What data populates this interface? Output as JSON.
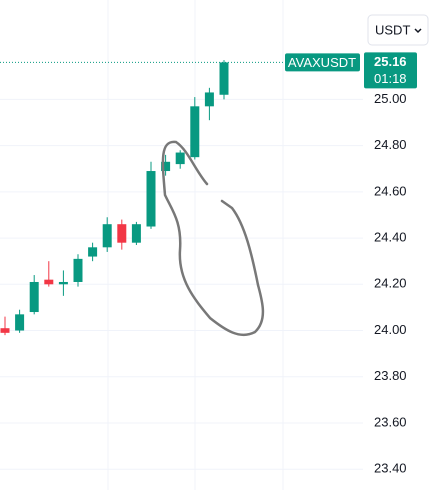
{
  "chart_data": {
    "type": "candlestick",
    "symbol": "AVAXUSDT",
    "currency": "USDT",
    "countdown": "01:18",
    "last_price": 25.16,
    "up_color": "#089981",
    "down_color": "#f23645",
    "grid": true,
    "ylim": [
      23.31,
      25.43
    ],
    "yticks": [
      {
        "value": 23.4,
        "label": "23.40"
      },
      {
        "value": 23.6,
        "label": "23.60"
      },
      {
        "value": 23.8,
        "label": "23.80"
      },
      {
        "value": 24.0,
        "label": "24.00"
      },
      {
        "value": 24.2,
        "label": "24.20"
      },
      {
        "value": 24.4,
        "label": "24.40"
      },
      {
        "value": 24.6,
        "label": "24.60"
      },
      {
        "value": 24.8,
        "label": "24.80"
      },
      {
        "value": 25.0,
        "label": "25.00"
      }
    ],
    "open": [
      24.01,
      24.0,
      24.08,
      24.22,
      24.2,
      24.21,
      24.32,
      24.36,
      24.46,
      24.38,
      24.45,
      24.69,
      24.72,
      24.75,
      24.97,
      25.02
    ],
    "high": [
      24.06,
      24.09,
      24.24,
      24.3,
      24.26,
      24.33,
      24.38,
      24.49,
      24.48,
      24.47,
      24.73,
      24.76,
      24.78,
      25.01,
      25.05,
      25.17
    ],
    "low": [
      23.98,
      23.99,
      24.07,
      24.19,
      24.15,
      24.19,
      24.3,
      24.34,
      24.35,
      24.37,
      24.44,
      24.67,
      24.7,
      24.74,
      24.91,
      25.0
    ],
    "close": [
      23.99,
      24.07,
      24.21,
      24.2,
      24.21,
      24.31,
      24.36,
      24.46,
      24.38,
      24.46,
      24.69,
      24.73,
      24.77,
      24.97,
      25.03,
      25.16
    ]
  }
}
